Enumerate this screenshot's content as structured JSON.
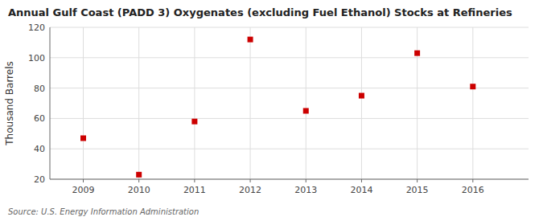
{
  "chart_data": {
    "type": "scatter",
    "title": "Annual Gulf Coast (PADD 3) Oxygenates (excluding Fuel Ethanol) Stocks at Refineries",
    "ylabel": "Thousand Barrels",
    "source": "Source: U.S. Energy Information Administration",
    "x": [
      2009,
      2010,
      2011,
      2012,
      2013,
      2014,
      2015,
      2016
    ],
    "values": [
      47,
      23,
      58,
      112,
      65,
      75,
      103,
      81
    ],
    "xlim": [
      2008.4,
      2017.0
    ],
    "ylim": [
      20,
      120
    ],
    "xticks": [
      2009,
      2010,
      2011,
      2012,
      2013,
      2014,
      2015,
      2016
    ],
    "yticks": [
      20,
      40,
      60,
      80,
      100,
      120
    ],
    "color": "#cc0000",
    "marker": "square",
    "grid": true
  }
}
